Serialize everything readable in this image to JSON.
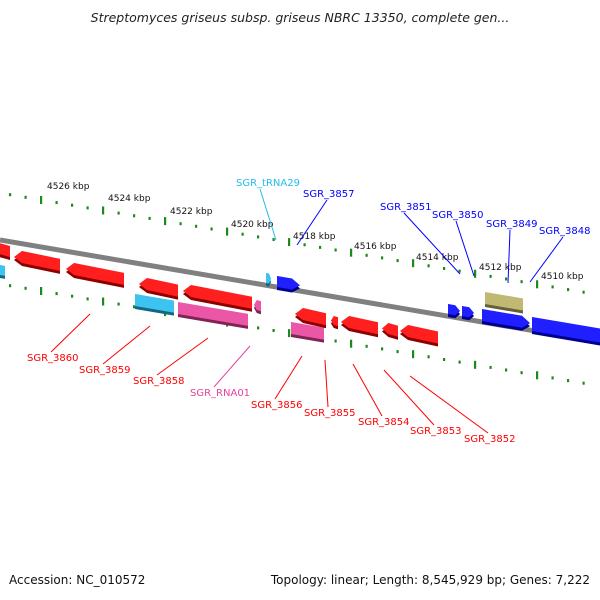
{
  "title": "Streptomyces griseus subsp. griseus NBRC 13350, complete gen...",
  "footer": {
    "accession": "Accession: NC_010572",
    "topology": "Topology: linear; Length: 8,545,929 bp; Genes: 7,222"
  },
  "colors": {
    "axis": "#808080",
    "ticks": "#1a8a1a",
    "gene": "#ff0000",
    "gene_reverse": "#0000ff",
    "trna": "#22bbee",
    "rna": "#e8409a",
    "pseudo": "#b8ae62"
  },
  "scale_labels": [
    "4526 kbp",
    "4524 kbp",
    "4522 kbp",
    "4520 kbp",
    "4518 kbp",
    "4516 kbp",
    "4514 kbp",
    "4512 kbp",
    "4510 kbp"
  ],
  "labels_top": [
    {
      "text": "SGR_tRNA29",
      "type": "trna"
    },
    {
      "text": "SGR_3857",
      "type": "gene_reverse"
    },
    {
      "text": "SGR_3851",
      "type": "gene_reverse"
    },
    {
      "text": "SGR_3850",
      "type": "gene_reverse"
    },
    {
      "text": "SGR_3849",
      "type": "gene_reverse"
    },
    {
      "text": "SGR_3848",
      "type": "gene_reverse"
    }
  ],
  "labels_bottom": [
    {
      "text": "SGR_3860",
      "type": "gene"
    },
    {
      "text": "SGR_3859",
      "type": "gene"
    },
    {
      "text": "SGR_3858",
      "type": "gene"
    },
    {
      "text": "SGR_RNA01",
      "type": "rna"
    },
    {
      "text": "SGR_3856",
      "type": "gene"
    },
    {
      "text": "SGR_3855",
      "type": "gene"
    },
    {
      "text": "SGR_3854",
      "type": "gene"
    },
    {
      "text": "SGR_3853",
      "type": "gene"
    },
    {
      "text": "SGR_3852",
      "type": "gene"
    }
  ]
}
